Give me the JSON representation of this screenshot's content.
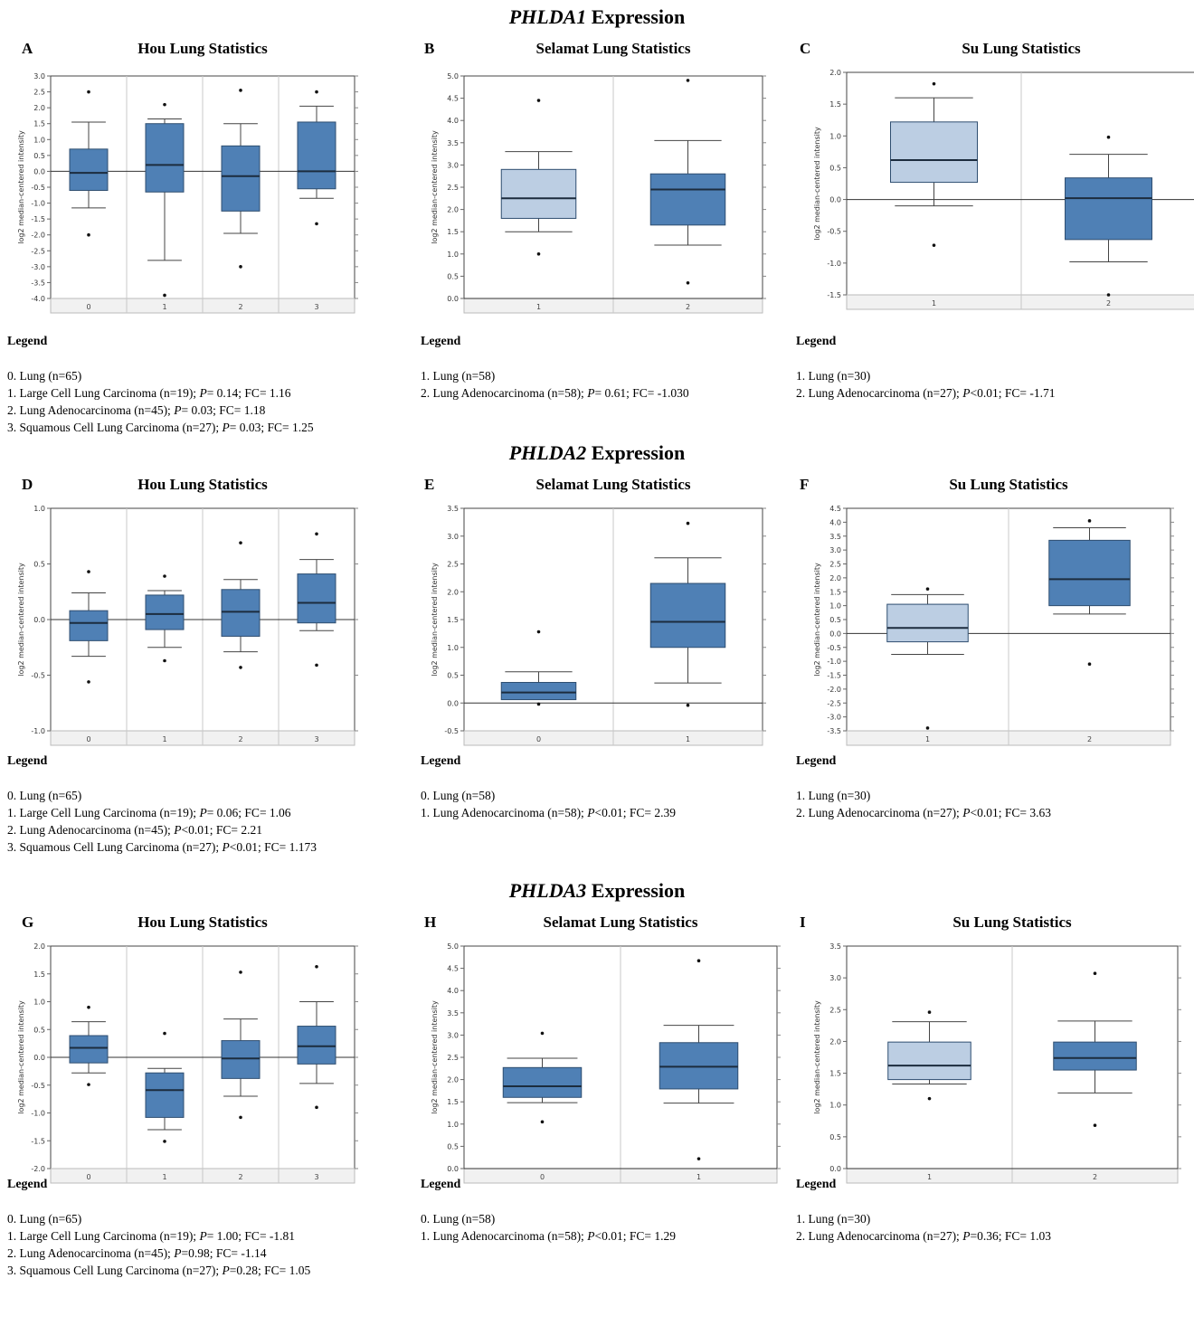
{
  "sections": [
    {
      "gene": "PHLDA1",
      "suffix": " Expression"
    },
    {
      "gene": "PHLDA2",
      "suffix": " Expression"
    },
    {
      "gene": "PHLDA3",
      "suffix": " Expression"
    }
  ],
  "legend_label": "Legend",
  "y_axis_label": "log2 median-centered intensity",
  "colors": {
    "box_dark": "#4f80b5",
    "box_light": "#bccee3",
    "grid": "#c8c8c8",
    "frame": "#444444"
  },
  "chart_data": [
    {
      "panel": "A",
      "type": "box",
      "title": "Hou Lung Statistics",
      "ylim": [
        -4.0,
        3.0
      ],
      "yticks": [
        3.0,
        2.5,
        2.0,
        1.5,
        1.0,
        0.5,
        0.0,
        -0.5,
        -1.0,
        -1.5,
        -2.0,
        -2.5,
        -3.0,
        -3.5,
        -4.0
      ],
      "ytick_labels": [
        "3.0",
        "2.5",
        "2.0",
        "1.5",
        "1.0",
        "0.5",
        "0.0",
        "-0.5",
        "-1.0",
        "-1.5",
        "-2.0",
        "-2.5",
        "-3.0",
        "-3.5",
        "-4.0"
      ],
      "baseline": 0,
      "categories": [
        "0",
        "1",
        "2",
        "3"
      ],
      "boxes": [
        {
          "cat": "0",
          "whisker_low": -1.15,
          "q1": -0.6,
          "median": -0.05,
          "q3": 0.7,
          "whisker_high": 1.55,
          "outliers": [
            2.5,
            -2.0
          ],
          "shade": "dark"
        },
        {
          "cat": "1",
          "whisker_low": -2.8,
          "q1": -0.65,
          "median": 0.2,
          "q3": 1.5,
          "whisker_high": 1.65,
          "outliers": [
            2.1,
            -3.9
          ],
          "shade": "dark"
        },
        {
          "cat": "2",
          "whisker_low": -1.95,
          "q1": -1.25,
          "median": -0.15,
          "q3": 0.8,
          "whisker_high": 1.5,
          "outliers": [
            2.55,
            -3.0
          ],
          "shade": "dark"
        },
        {
          "cat": "3",
          "whisker_low": -0.85,
          "q1": -0.55,
          "median": 0.0,
          "q3": 1.55,
          "whisker_high": 2.05,
          "outliers": [
            2.5,
            -1.65
          ],
          "shade": "dark"
        }
      ],
      "legend": [
        {
          "text": "0. Lung (n=65)"
        },
        {
          "pre": "1. Large Cell Lung Carcinoma (n=19); ",
          "p": "P",
          "post": "= 0.14; FC= 1.16"
        },
        {
          "pre": "2. Lung Adenocarcinoma (n=45); ",
          "p": "P",
          "post": "= 0.03; FC= 1.18"
        },
        {
          "pre": "3. Squamous Cell Lung Carcinoma (n=27); ",
          "p": "P",
          "post": "= 0.03; FC= 1.25"
        }
      ]
    },
    {
      "panel": "B",
      "type": "box",
      "title": "Selamat Lung Statistics",
      "ylim": [
        0.0,
        5.0
      ],
      "yticks": [
        5.0,
        4.5,
        4.0,
        3.5,
        3.0,
        2.5,
        2.0,
        1.5,
        1.0,
        0.5,
        0.0
      ],
      "ytick_labels": [
        "5.0",
        "4.5",
        "4.0",
        "3.5",
        "3.0",
        "2.5",
        "2.0",
        "1.5",
        "1.0",
        "0.5",
        "0.0"
      ],
      "baseline": 0,
      "categories": [
        "1",
        "2"
      ],
      "boxes": [
        {
          "cat": "1",
          "whisker_low": 1.5,
          "q1": 1.8,
          "median": 2.25,
          "q3": 2.9,
          "whisker_high": 3.3,
          "outliers": [
            4.45,
            1.0
          ],
          "shade": "light"
        },
        {
          "cat": "2",
          "whisker_low": 1.2,
          "q1": 1.65,
          "median": 2.45,
          "q3": 2.8,
          "whisker_high": 3.55,
          "outliers": [
            4.9,
            0.35
          ],
          "shade": "dark"
        }
      ],
      "legend": [
        {
          "text": "1. Lung (n=58)"
        },
        {
          "pre": "2. Lung Adenocarcinoma (n=58); ",
          "p": "P",
          "post": "= 0.61; FC= -1.030"
        }
      ]
    },
    {
      "panel": "C",
      "type": "box",
      "title": "Su Lung Statistics",
      "ylim": [
        -1.5,
        2.0
      ],
      "yticks": [
        2.0,
        1.5,
        1.0,
        0.5,
        0.0,
        -0.5,
        -1.0,
        -1.5
      ],
      "ytick_labels": [
        "2.0",
        "1.5",
        "1.0",
        "0.5",
        "0.0",
        "-0.5",
        "-1.0",
        "-1.5"
      ],
      "baseline": 0,
      "categories": [
        "1",
        "2"
      ],
      "boxes": [
        {
          "cat": "1",
          "whisker_low": -0.1,
          "q1": 0.27,
          "median": 0.62,
          "q3": 1.22,
          "whisker_high": 1.6,
          "outliers": [
            1.82,
            -0.72
          ],
          "shade": "light"
        },
        {
          "cat": "2",
          "whisker_low": -0.98,
          "q1": -0.63,
          "median": 0.02,
          "q3": 0.34,
          "whisker_high": 0.71,
          "outliers": [
            0.98,
            -1.5
          ],
          "shade": "dark"
        }
      ],
      "legend": [
        {
          "text": "1. Lung (n=30)"
        },
        {
          "pre": "2. Lung Adenocarcinoma (n=27); ",
          "p": "P",
          "post": "<0.01; FC= -1.71"
        }
      ]
    },
    {
      "panel": "D",
      "type": "box",
      "title": "Hou Lung Statistics",
      "ylim": [
        -1.0,
        1.0
      ],
      "yticks": [
        1.0,
        0.5,
        0.0,
        -0.5,
        -1.0
      ],
      "ytick_labels": [
        "1.0",
        "0.5",
        "0.0",
        "-0.5",
        "-1.0"
      ],
      "baseline": 0,
      "categories": [
        "0",
        "1",
        "2",
        "3"
      ],
      "boxes": [
        {
          "cat": "0",
          "whisker_low": -0.33,
          "q1": -0.19,
          "median": -0.03,
          "q3": 0.08,
          "whisker_high": 0.24,
          "outliers": [
            0.43,
            -0.56
          ],
          "shade": "dark"
        },
        {
          "cat": "1",
          "whisker_low": -0.25,
          "q1": -0.09,
          "median": 0.05,
          "q3": 0.22,
          "whisker_high": 0.26,
          "outliers": [
            0.39,
            -0.37
          ],
          "shade": "dark"
        },
        {
          "cat": "2",
          "whisker_low": -0.29,
          "q1": -0.15,
          "median": 0.07,
          "q3": 0.27,
          "whisker_high": 0.36,
          "outliers": [
            0.69,
            -0.43
          ],
          "shade": "dark"
        },
        {
          "cat": "3",
          "whisker_low": -0.1,
          "q1": -0.03,
          "median": 0.15,
          "q3": 0.41,
          "whisker_high": 0.54,
          "outliers": [
            0.77,
            -0.41
          ],
          "shade": "dark"
        }
      ],
      "legend": [
        {
          "text": "0. Lung (n=65)"
        },
        {
          "pre": "1. Large Cell Lung Carcinoma (n=19); ",
          "p": "P",
          "post": "= 0.06; FC= 1.06"
        },
        {
          "pre": "2. Lung Adenocarcinoma (n=45); ",
          "p": "P",
          "post": "<0.01; FC= 2.21"
        },
        {
          "pre": "3. Squamous Cell Lung Carcinoma (n=27); ",
          "p": "P",
          "post": "<0.01; FC= 1.173"
        }
      ]
    },
    {
      "panel": "E",
      "type": "box",
      "title": "Selamat Lung Statistics",
      "ylim": [
        -0.5,
        3.5
      ],
      "yticks": [
        3.5,
        3.0,
        2.5,
        2.0,
        1.5,
        1.0,
        0.5,
        0.0,
        -0.5
      ],
      "ytick_labels": [
        "3.5",
        "3.0",
        "2.5",
        "2.0",
        "1.5",
        "1.0",
        "0.5",
        "0.0",
        "-0.5"
      ],
      "baseline": 0,
      "categories": [
        "0",
        "1"
      ],
      "boxes": [
        {
          "cat": "0",
          "whisker_low": 0.06,
          "q1": 0.06,
          "median": 0.19,
          "q3": 0.37,
          "whisker_high": 0.56,
          "outliers": [
            1.28,
            -0.02
          ],
          "shade": "dark"
        },
        {
          "cat": "1",
          "whisker_low": 0.36,
          "q1": 1.0,
          "median": 1.46,
          "q3": 2.15,
          "whisker_high": 2.61,
          "outliers": [
            3.23,
            -0.04
          ],
          "shade": "dark"
        }
      ],
      "legend": [
        {
          "text": "0. Lung (n=58)"
        },
        {
          "pre": "1. Lung Adenocarcinoma (n=58); ",
          "p": "P",
          "post": "<0.01; FC= 2.39"
        }
      ]
    },
    {
      "panel": "F",
      "type": "box",
      "title": "Su Lung Statistics",
      "ylim": [
        -3.5,
        4.5
      ],
      "yticks": [
        4.5,
        4.0,
        3.5,
        3.0,
        2.5,
        2.0,
        1.5,
        1.0,
        0.5,
        0.0,
        -0.5,
        -1.0,
        -1.5,
        -2.0,
        -2.5,
        -3.0,
        -3.5
      ],
      "ytick_labels": [
        "4.5",
        "4.0",
        "3.5",
        "3.0",
        "2.5",
        "2.0",
        "1.5",
        "1.0",
        "0.5",
        "0.0",
        "-0.5",
        "-1.0",
        "-1.5",
        "-2.0",
        "-2.5",
        "-3.0",
        "-3.5"
      ],
      "baseline": 0,
      "categories": [
        "1",
        "2"
      ],
      "boxes": [
        {
          "cat": "1",
          "whisker_low": -0.75,
          "q1": -0.3,
          "median": 0.2,
          "q3": 1.05,
          "whisker_high": 1.4,
          "outliers": [
            1.6,
            -3.4
          ],
          "shade": "light"
        },
        {
          "cat": "2",
          "whisker_low": 0.7,
          "q1": 1.0,
          "median": 1.95,
          "q3": 3.35,
          "whisker_high": 3.8,
          "outliers": [
            4.05,
            -1.1
          ],
          "shade": "dark"
        }
      ],
      "legend": [
        {
          "text": "1. Lung (n=30)"
        },
        {
          "pre": "2. Lung Adenocarcinoma (n=27); ",
          "p": "P",
          "post": "<0.01; FC= 3.63"
        }
      ]
    },
    {
      "panel": "G",
      "type": "box",
      "title": "Hou Lung Statistics",
      "ylim": [
        -2.0,
        2.0
      ],
      "yticks": [
        2.0,
        1.5,
        1.0,
        0.5,
        0.0,
        -0.5,
        -1.0,
        -1.5,
        -2.0
      ],
      "ytick_labels": [
        "2.0",
        "1.5",
        "1.0",
        "0.5",
        "0.0",
        "-0.5",
        "-1.0",
        "-1.5",
        "-2.0"
      ],
      "baseline": 0,
      "categories": [
        "0",
        "1",
        "2",
        "3"
      ],
      "boxes": [
        {
          "cat": "0",
          "whisker_low": -0.28,
          "q1": -0.1,
          "median": 0.17,
          "q3": 0.39,
          "whisker_high": 0.64,
          "outliers": [
            0.9,
            -0.49
          ],
          "shade": "dark"
        },
        {
          "cat": "1",
          "whisker_low": -1.3,
          "q1": -1.08,
          "median": -0.59,
          "q3": -0.28,
          "whisker_high": -0.2,
          "outliers": [
            0.43,
            -1.51
          ],
          "shade": "dark"
        },
        {
          "cat": "2",
          "whisker_low": -0.7,
          "q1": -0.38,
          "median": -0.02,
          "q3": 0.3,
          "whisker_high": 0.69,
          "outliers": [
            1.53,
            -1.08
          ],
          "shade": "dark"
        },
        {
          "cat": "3",
          "whisker_low": -0.47,
          "q1": -0.12,
          "median": 0.2,
          "q3": 0.56,
          "whisker_high": 1.0,
          "outliers": [
            1.63,
            -0.9
          ],
          "shade": "dark"
        }
      ],
      "legend": [
        {
          "text": "0. Lung (n=65)"
        },
        {
          "pre": "1. Large Cell Lung Carcinoma (n=19); ",
          "p": "P",
          "post": "= 1.00; FC= -1.81"
        },
        {
          "pre": "2. Lung Adenocarcinoma (n=45); ",
          "p": "P",
          "post": "=0.98; FC= -1.14"
        },
        {
          "pre": "3. Squamous Cell Lung Carcinoma (n=27); ",
          "p": "P",
          "post": "=0.28; FC= 1.05"
        }
      ]
    },
    {
      "panel": "H",
      "type": "box",
      "title": "Selamat Lung Statistics",
      "ylim": [
        0.0,
        5.0
      ],
      "yticks": [
        5.0,
        4.5,
        4.0,
        3.5,
        3.0,
        2.5,
        2.0,
        1.5,
        1.0,
        0.5,
        0.0
      ],
      "ytick_labels": [
        "5.0",
        "4.5",
        "4.0",
        "3.5",
        "3.0",
        "2.5",
        "2.0",
        "1.5",
        "1.0",
        "0.5",
        "0.0"
      ],
      "baseline": 0,
      "categories": [
        "0",
        "1"
      ],
      "boxes": [
        {
          "cat": "0",
          "whisker_low": 1.48,
          "q1": 1.6,
          "median": 1.85,
          "q3": 2.27,
          "whisker_high": 2.48,
          "outliers": [
            3.04,
            1.05
          ],
          "shade": "dark"
        },
        {
          "cat": "1",
          "whisker_low": 1.47,
          "q1": 1.79,
          "median": 2.29,
          "q3": 2.83,
          "whisker_high": 3.22,
          "outliers": [
            4.67,
            0.22
          ],
          "shade": "dark"
        }
      ],
      "legend": [
        {
          "text": "0. Lung (n=58)"
        },
        {
          "pre": "1. Lung Adenocarcinoma (n=58); ",
          "p": "P",
          "post": "<0.01; FC= 1.29"
        }
      ]
    },
    {
      "panel": "I",
      "type": "box",
      "title": "Su Lung Statistics",
      "ylim": [
        0.0,
        3.5
      ],
      "yticks": [
        3.5,
        3.0,
        2.5,
        2.0,
        1.5,
        1.0,
        0.5,
        0.0
      ],
      "ytick_labels": [
        "3.5",
        "3.0",
        "2.5",
        "2.0",
        "1.5",
        "1.0",
        "0.5",
        "0.0"
      ],
      "baseline": 0,
      "categories": [
        "1",
        "2"
      ],
      "boxes": [
        {
          "cat": "1",
          "whisker_low": 1.33,
          "q1": 1.4,
          "median": 1.62,
          "q3": 1.99,
          "whisker_high": 2.31,
          "outliers": [
            2.46,
            1.1
          ],
          "shade": "light"
        },
        {
          "cat": "2",
          "whisker_low": 1.19,
          "q1": 1.55,
          "median": 1.74,
          "q3": 1.99,
          "whisker_high": 2.32,
          "outliers": [
            3.07,
            0.68
          ],
          "shade": "dark"
        }
      ],
      "legend": [
        {
          "text": "1. Lung (n=30)"
        },
        {
          "pre": "2. Lung Adenocarcinoma (n=27); ",
          "p": "P",
          "post": "=0.36; FC= 1.03"
        }
      ]
    }
  ]
}
